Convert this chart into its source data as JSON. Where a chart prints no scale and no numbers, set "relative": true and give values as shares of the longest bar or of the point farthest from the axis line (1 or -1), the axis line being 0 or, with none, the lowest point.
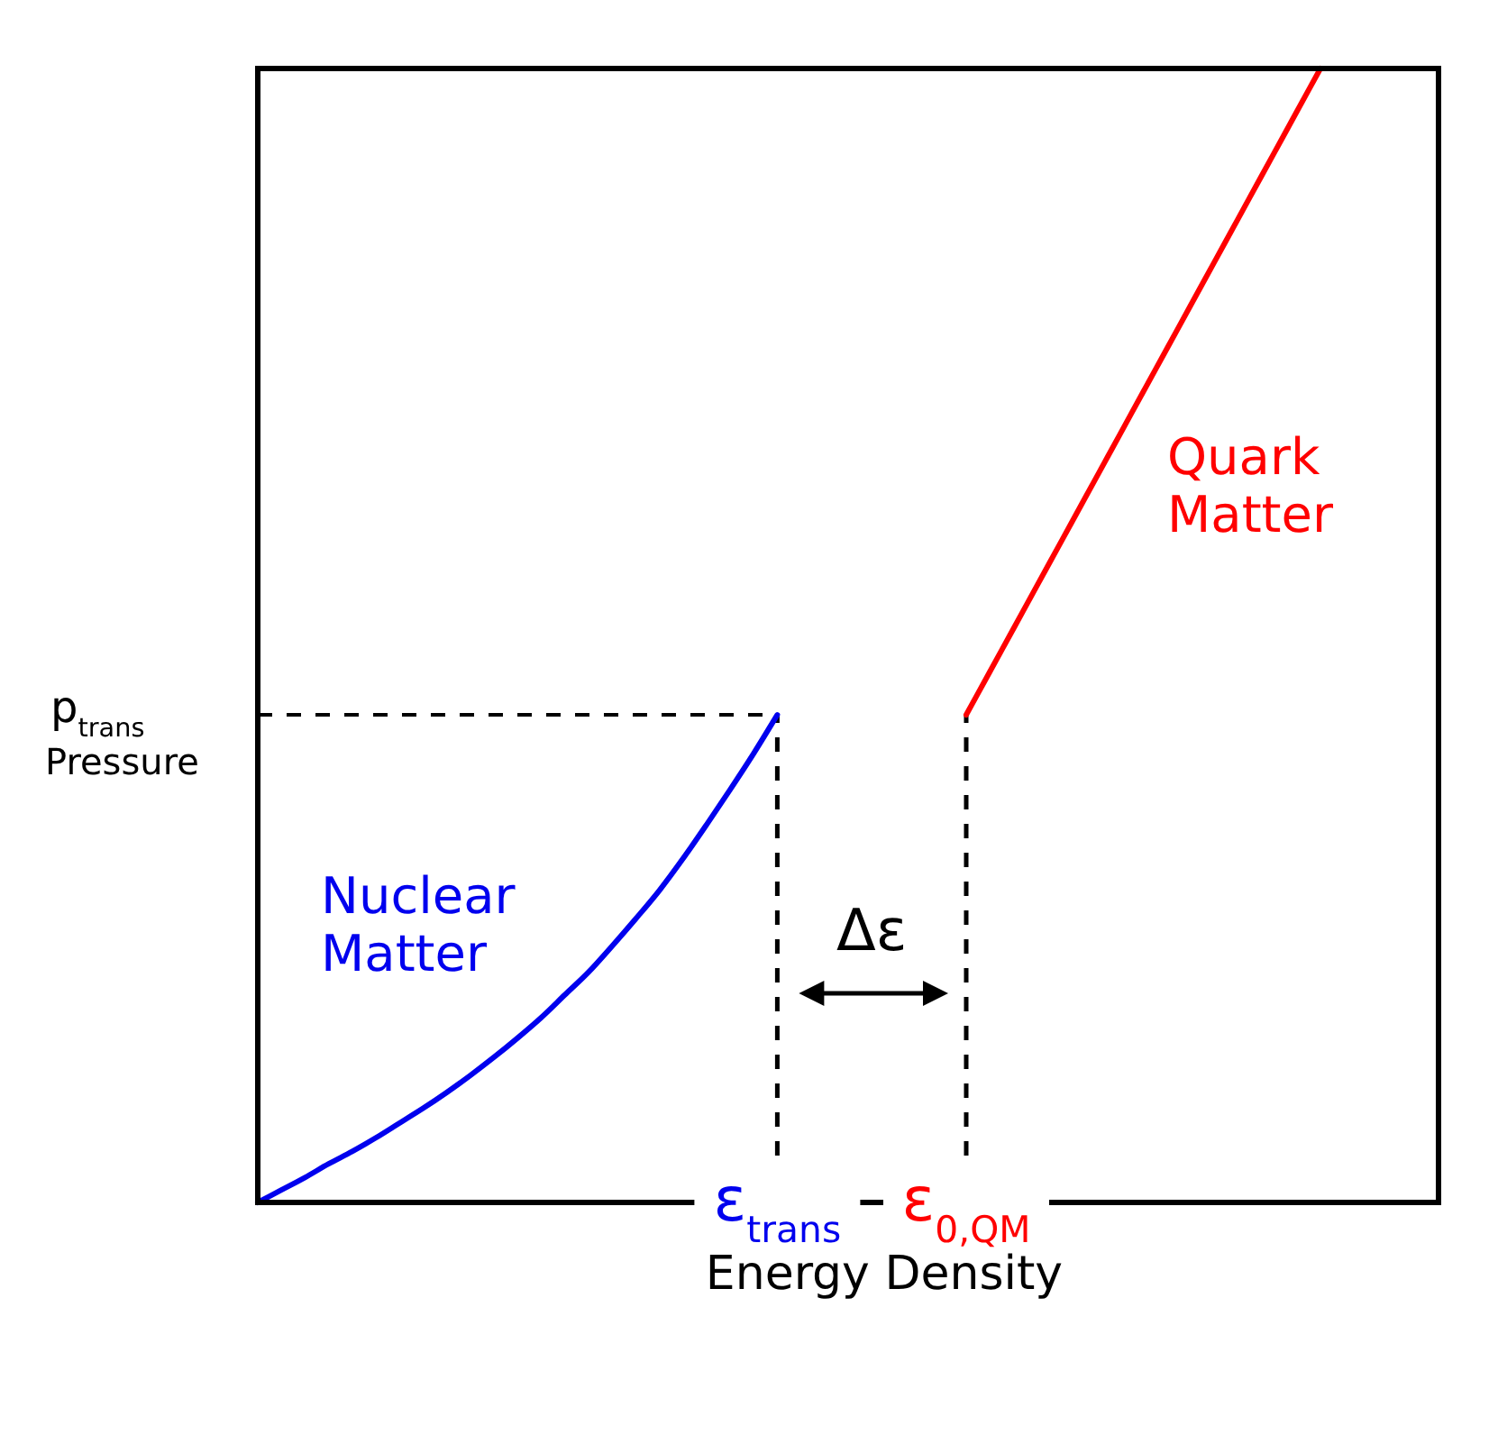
{
  "chart_data": {
    "type": "line",
    "xlabel": "Energy Density",
    "ylabel": "Pressure",
    "relative": true,
    "categories": [
      null,
      null,
      null,
      null,
      null,
      null,
      null,
      null,
      null,
      null,
      null,
      null,
      null,
      null,
      null,
      null,
      null,
      null,
      null,
      null,
      null,
      null,
      "ε$_{trans}$",
      null,
      null,
      null,
      null,
      null,
      null,
      null,
      "ε$_{0,QM}$",
      null,
      null,
      null,
      null,
      null,
      null,
      null,
      null,
      null,
      null,
      null,
      null,
      null,
      null,
      null
    ],
    "series": [
      {
        "name": "Nuclear Matter",
        "color": "#0000ee",
        "values": [
          0,
          0.011,
          0.022,
          0.034,
          0.045,
          0.057,
          0.07,
          0.083,
          0.097,
          0.112,
          0.128,
          0.145,
          0.163,
          0.183,
          0.203,
          0.226,
          0.25,
          0.275,
          0.303,
          0.333,
          0.364,
          0.396,
          0.43,
          null,
          null,
          null,
          null,
          null,
          null,
          null,
          null,
          null,
          null,
          null,
          null,
          null,
          null,
          null,
          null,
          null,
          null,
          null,
          null,
          null,
          null,
          null
        ]
      },
      {
        "name": "Quark Matter",
        "color": "#ff0000",
        "values": [
          null,
          null,
          null,
          null,
          null,
          null,
          null,
          null,
          null,
          null,
          null,
          null,
          null,
          null,
          null,
          null,
          null,
          null,
          null,
          null,
          null,
          null,
          null,
          null,
          null,
          null,
          null,
          null,
          null,
          null,
          0.43,
          0.468,
          0.506,
          0.544,
          0.582,
          0.62,
          0.658,
          0.696,
          0.734,
          0.772,
          0.81,
          0.848,
          0.886,
          0.924,
          0.962,
          1
        ]
      }
    ],
    "ref_lines": [
      {
        "axis": "y",
        "value": 0.43,
        "label": "p$_{trans}$",
        "line_style": "dashed"
      },
      {
        "axis": "x",
        "value": "ε$_{trans}$",
        "line_style": "dashed"
      },
      {
        "axis": "x",
        "value": "ε$_{0,QM}$",
        "line_style": "dashed"
      }
    ],
    "annotations": [
      "Δε"
    ],
    "grid": false,
    "marker": "none",
    "line_style": "solid"
  }
}
